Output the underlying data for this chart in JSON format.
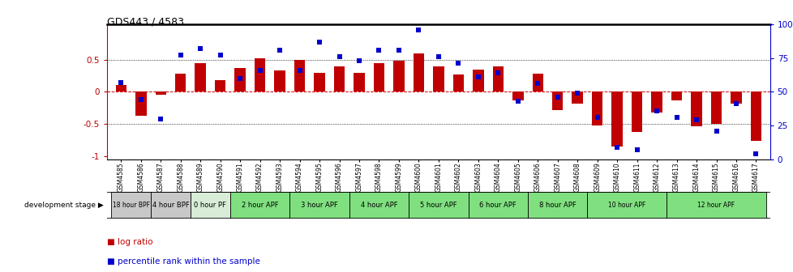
{
  "title": "GDS443 / 4583",
  "samples": [
    "GSM4585",
    "GSM4586",
    "GSM4587",
    "GSM4588",
    "GSM4589",
    "GSM4590",
    "GSM4591",
    "GSM4592",
    "GSM4593",
    "GSM4594",
    "GSM4595",
    "GSM4596",
    "GSM4597",
    "GSM4598",
    "GSM4599",
    "GSM4600",
    "GSM4601",
    "GSM4602",
    "GSM4603",
    "GSM4604",
    "GSM4605",
    "GSM4606",
    "GSM4607",
    "GSM4608",
    "GSM4609",
    "GSM4610",
    "GSM4611",
    "GSM4612",
    "GSM4613",
    "GSM4614",
    "GSM4615",
    "GSM4616",
    "GSM4617"
  ],
  "log_ratio": [
    0.1,
    -0.38,
    -0.04,
    0.28,
    0.45,
    0.18,
    0.37,
    0.52,
    0.33,
    0.5,
    0.3,
    0.4,
    0.3,
    0.45,
    0.48,
    0.6,
    0.4,
    0.27,
    0.35,
    0.4,
    -0.13,
    0.28,
    -0.28,
    -0.18,
    -0.52,
    -0.85,
    -0.62,
    -0.32,
    -0.14,
    -0.54,
    -0.5,
    -0.18,
    -0.76
  ],
  "percentile": [
    57,
    44,
    30,
    77,
    82,
    77,
    60,
    66,
    81,
    66,
    87,
    76,
    73,
    81,
    81,
    96,
    76,
    71,
    61,
    64,
    43,
    56,
    46,
    49,
    31,
    9,
    7,
    36,
    31,
    29,
    21,
    41,
    4
  ],
  "stages": [
    {
      "label": "18 hour BPF",
      "start": 0,
      "end": 2,
      "color": "#c8c8c8"
    },
    {
      "label": "4 hour BPF",
      "start": 2,
      "end": 4,
      "color": "#c8c8c8"
    },
    {
      "label": "0 hour PF",
      "start": 4,
      "end": 6,
      "color": "#d8ecd8"
    },
    {
      "label": "2 hour APF",
      "start": 6,
      "end": 9,
      "color": "#80e080"
    },
    {
      "label": "3 hour APF",
      "start": 9,
      "end": 12,
      "color": "#80e080"
    },
    {
      "label": "4 hour APF",
      "start": 12,
      "end": 15,
      "color": "#80e080"
    },
    {
      "label": "5 hour APF",
      "start": 15,
      "end": 18,
      "color": "#80e080"
    },
    {
      "label": "6 hour APF",
      "start": 18,
      "end": 21,
      "color": "#80e080"
    },
    {
      "label": "8 hour APF",
      "start": 21,
      "end": 24,
      "color": "#80e080"
    },
    {
      "label": "10 hour APF",
      "start": 24,
      "end": 28,
      "color": "#80e080"
    },
    {
      "label": "12 hour APF",
      "start": 28,
      "end": 33,
      "color": "#80e080"
    }
  ],
  "bar_color": "#c00000",
  "dot_color": "#0000cc",
  "ylim": [
    -1.05,
    1.05
  ],
  "hline_color": "#cc0000",
  "dotted_color": "black"
}
